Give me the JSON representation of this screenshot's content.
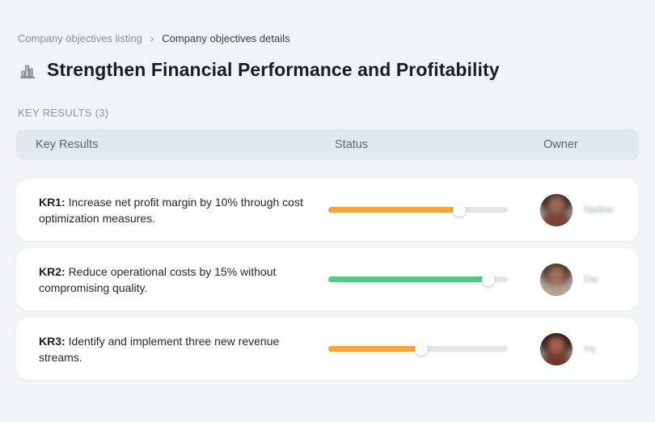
{
  "breadcrumb": {
    "parent": "Company objectives listing",
    "separator": "›",
    "current": "Company objectives details"
  },
  "header": {
    "icon": "city-buildings-icon",
    "title": "Strengthen Financial Performance and Profitability"
  },
  "section": {
    "label": "KEY RESULTS (3)"
  },
  "table": {
    "columns": [
      "Key Results",
      "Status",
      "Owner"
    ],
    "rows": [
      {
        "kr_label": "KR1:",
        "text": "Increase net profit margin by 10% through cost optimization measures.",
        "progress_percent": 73,
        "progress_color": "accent_orange",
        "owner": "Nadine"
      },
      {
        "kr_label": "KR2:",
        "text": "Reduce operational costs by 15% without compromising quality.",
        "progress_percent": 89,
        "progress_color": "accent_green",
        "owner": "Dai"
      },
      {
        "kr_label": "KR3:",
        "text": "Identify and implement three new revenue streams.",
        "progress_percent": 52,
        "progress_color": "accent_orange",
        "owner": "Ivy"
      }
    ]
  },
  "colors": {
    "accent_orange": "#F9A23B",
    "accent_green": "#57C886",
    "track_gray": "#E4E4E6",
    "header_bg": "#E3E7EE",
    "page_bg": "#F2F3F5"
  }
}
